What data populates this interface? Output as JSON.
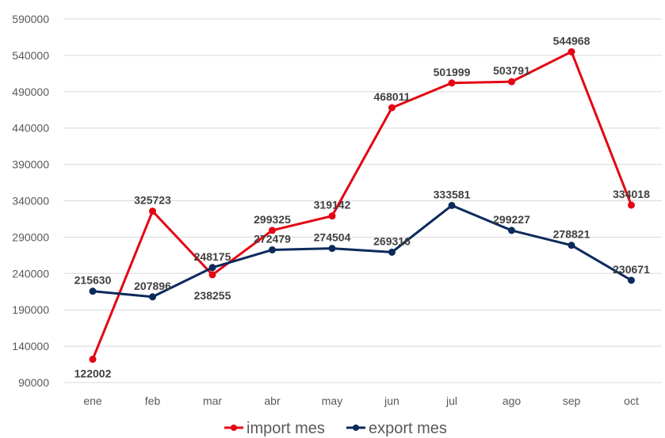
{
  "chart_data": {
    "type": "line",
    "categories": [
      "ene",
      "feb",
      "mar",
      "abr",
      "may",
      "jun",
      "jul",
      "ago",
      "sep",
      "oct"
    ],
    "series": [
      {
        "name": "import mes",
        "color": "#e30613",
        "values": [
          122002,
          325723,
          238255,
          299325,
          319142,
          468011,
          501999,
          503791,
          544968,
          334018
        ]
      },
      {
        "name": "export mes",
        "color": "#0c2a5b",
        "values": [
          215630,
          207896,
          248175,
          272479,
          274504,
          269316,
          333581,
          299227,
          278821,
          230671
        ]
      }
    ],
    "yticks": [
      90000,
      140000,
      190000,
      240000,
      290000,
      340000,
      390000,
      440000,
      490000,
      540000,
      590000
    ],
    "ylim": [
      90000,
      590000
    ],
    "grid": true,
    "legend": "bottom",
    "title": "",
    "xlabel": "",
    "ylabel": ""
  }
}
